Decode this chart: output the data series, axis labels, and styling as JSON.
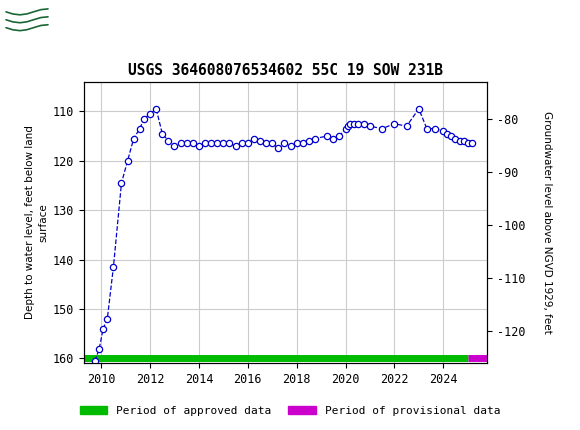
{
  "title": "USGS 364608076534602 55C 19 SOW 231B",
  "ylabel_left": "Depth to water level, feet below land\nsurface",
  "ylabel_right": "Groundwater level above NGVD 1929, feet",
  "ylim_left": [
    161,
    104
  ],
  "ylim_right": [
    -126,
    -73
  ],
  "yticks_left": [
    110,
    120,
    130,
    140,
    150,
    160
  ],
  "yticks_right": [
    -80,
    -90,
    -100,
    -110,
    -120
  ],
  "xlim": [
    2009.3,
    2025.8
  ],
  "xticks": [
    2010,
    2012,
    2014,
    2016,
    2018,
    2020,
    2022,
    2024
  ],
  "header_color": "#1a6634",
  "bg_color": "#ffffff",
  "grid_color": "#cccccc",
  "line_color": "#0000cc",
  "marker_facecolor": "#ffffff",
  "marker_edgecolor": "#0000cc",
  "approved_color": "#00bb00",
  "provisional_color": "#cc00cc",
  "data_x": [
    2009.75,
    2009.92,
    2010.08,
    2010.25,
    2010.5,
    2010.83,
    2011.08,
    2011.33,
    2011.58,
    2011.75,
    2012.0,
    2012.25,
    2012.5,
    2012.75,
    2013.0,
    2013.25,
    2013.5,
    2013.75,
    2014.0,
    2014.25,
    2014.5,
    2014.75,
    2015.0,
    2015.25,
    2015.5,
    2015.75,
    2016.0,
    2016.25,
    2016.5,
    2016.75,
    2017.0,
    2017.25,
    2017.5,
    2017.75,
    2018.0,
    2018.25,
    2018.5,
    2018.75,
    2019.25,
    2019.5,
    2019.75,
    2020.0,
    2020.1,
    2020.2,
    2020.35,
    2020.5,
    2020.75,
    2021.0,
    2021.5,
    2022.0,
    2022.5,
    2023.0,
    2023.33,
    2023.67,
    2024.0,
    2024.17,
    2024.33,
    2024.5,
    2024.67,
    2024.83,
    2025.0,
    2025.17
  ],
  "data_y": [
    160.5,
    158.0,
    154.0,
    152.0,
    141.5,
    124.5,
    120.0,
    115.5,
    113.5,
    111.5,
    110.5,
    109.5,
    114.5,
    116.0,
    117.0,
    116.5,
    116.5,
    116.5,
    117.0,
    116.5,
    116.5,
    116.5,
    116.5,
    116.5,
    117.0,
    116.5,
    116.5,
    115.5,
    116.0,
    116.5,
    116.5,
    117.5,
    116.5,
    117.0,
    116.5,
    116.5,
    116.0,
    115.5,
    115.0,
    115.5,
    115.0,
    113.5,
    113.0,
    112.5,
    112.5,
    112.5,
    112.5,
    113.0,
    113.5,
    112.5,
    113.0,
    109.5,
    113.5,
    113.5,
    114.0,
    114.5,
    115.0,
    115.5,
    116.0,
    116.0,
    116.5,
    116.5
  ],
  "legend_approved": "Period of approved data",
  "legend_provisional": "Period of provisional data",
  "approved_x_end": 2025.0,
  "provisional_x_start": 2025.0,
  "provisional_x_end": 2025.8
}
